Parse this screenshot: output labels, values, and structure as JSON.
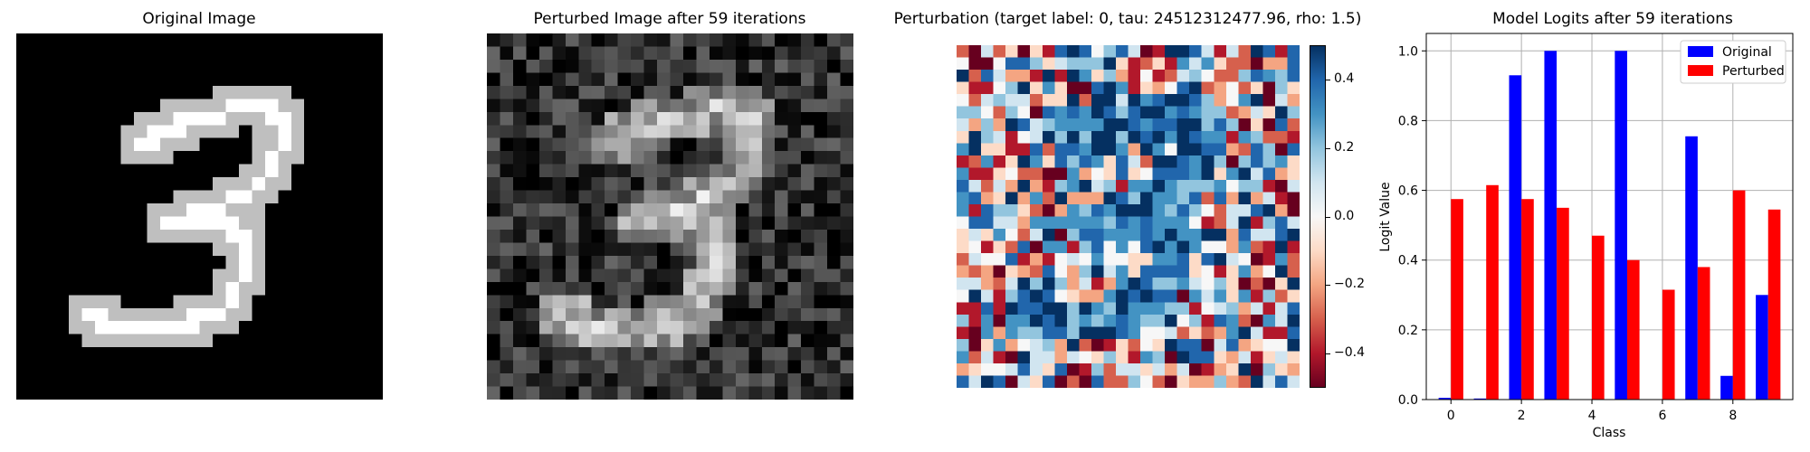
{
  "panels": {
    "original": {
      "title": "Original Image"
    },
    "perturbed": {
      "title": "Perturbed Image after 59 iterations"
    },
    "perturbation": {
      "title": "Perturbation (target label: 0, tau: 24512312477.96, rho: 1.5)",
      "colormap": "RdBu",
      "colorbar_range": [
        -0.5,
        0.5
      ],
      "colorbar_ticks": [
        "0.4",
        "0.2",
        "0.0",
        "−0.2",
        "−0.4"
      ]
    },
    "logits": {
      "title": "Model Logits after 59 iterations"
    }
  },
  "chart_data": {
    "type": "bar",
    "title": "Model Logits after 59 iterations",
    "xlabel": "Class",
    "ylabel": "Logit Value",
    "categories": [
      0,
      1,
      2,
      3,
      4,
      5,
      6,
      7,
      8,
      9
    ],
    "x_ticks": [
      "0",
      "2",
      "4",
      "6",
      "8"
    ],
    "y_ticks": [
      "0.0",
      "0.2",
      "0.4",
      "0.6",
      "0.8",
      "1.0"
    ],
    "ylim": [
      0,
      1.05
    ],
    "xlim": [
      -0.7,
      9.7
    ],
    "grid": true,
    "legend_position": "top-right",
    "series": [
      {
        "name": "Original",
        "color": "#0000ff",
        "values": [
          0.005,
          0.003,
          0.93,
          1.0,
          0.0,
          1.0,
          0.0,
          0.755,
          0.068,
          0.3
        ]
      },
      {
        "name": "Perturbed",
        "color": "#ff0000",
        "values": [
          0.575,
          0.615,
          0.575,
          0.55,
          0.47,
          0.4,
          0.315,
          0.38,
          0.6,
          0.545
        ]
      }
    ]
  }
}
